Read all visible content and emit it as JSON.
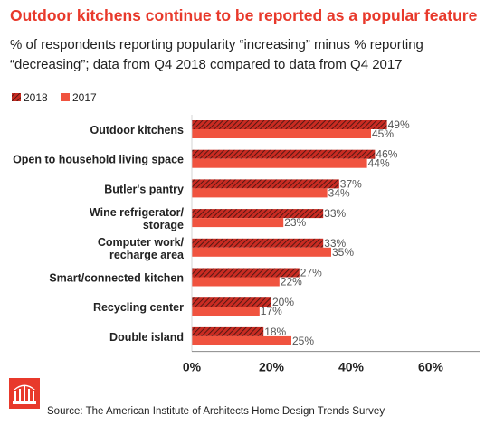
{
  "header": {
    "title": "Outdoor kitchens continue to be reported as a popular feature",
    "subtitle": "% of respondents reporting popularity “increasing” minus % reporting “decreasing”; data from Q4 2018 compared to data from Q4 2017"
  },
  "footer": {
    "source": "Source: The American Institute of Architects Home Design Trends Survey"
  },
  "colors": {
    "title": "#e8392b",
    "series_2018": "#c92b22",
    "series_2018_hatch": "#3a1410",
    "series_2017": "#f0533f",
    "text": "#222222",
    "value_label": "#555555"
  },
  "chart_data": {
    "type": "bar",
    "orientation": "horizontal",
    "categories": [
      "Outdoor kitchens",
      "Open to household living space",
      "Butler's pantry",
      "Wine refrigerator/\nstorage",
      "Computer work/\nrecharge area",
      "Smart/connected kitchen",
      "Recycling center",
      "Double island"
    ],
    "series": [
      {
        "name": "2018",
        "values": [
          49,
          46,
          37,
          33,
          33,
          27,
          20,
          18
        ],
        "labels": [
          "49%",
          "46%",
          "37%",
          "33%",
          "33%",
          "27%",
          "20%",
          "18%"
        ],
        "pattern": "hatched"
      },
      {
        "name": "2017",
        "values": [
          45,
          44,
          34,
          23,
          35,
          22,
          17,
          25
        ],
        "labels": [
          "45%",
          "44%",
          "34%",
          "23%",
          "35%",
          "22%",
          "17%",
          "25%"
        ],
        "pattern": "solid"
      }
    ],
    "xlim": [
      0,
      70
    ],
    "xticks": [
      0,
      20,
      40,
      60
    ],
    "xtick_labels": [
      "0%",
      "20%",
      "40%",
      "60%"
    ],
    "legend_position": "top-left",
    "grid": false
  }
}
